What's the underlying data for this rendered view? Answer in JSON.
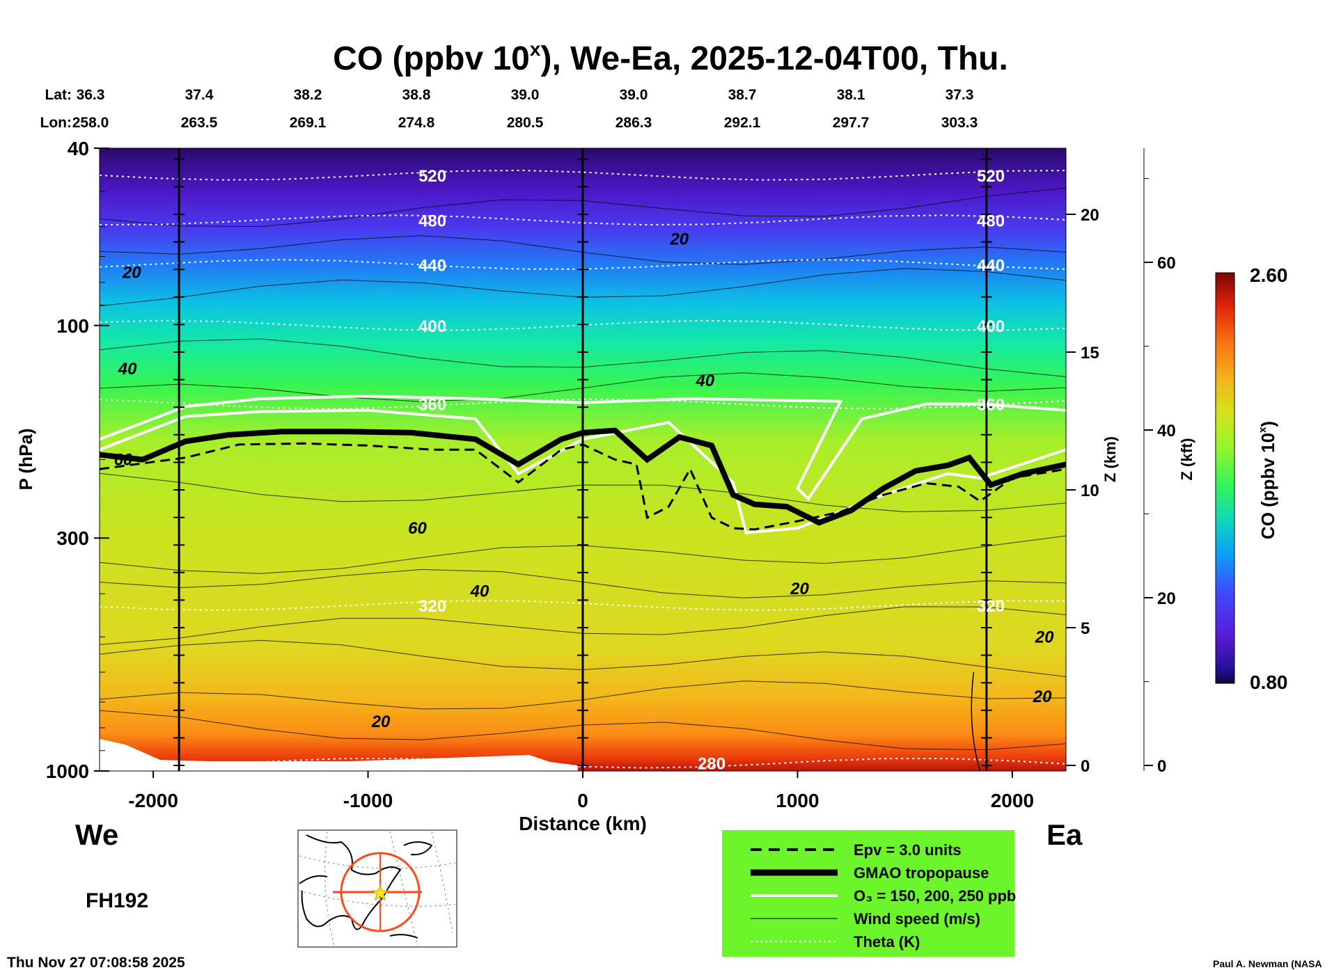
{
  "title_main": "CO (ppbv 10",
  "title_sup": "x",
  "title_rest": "), We-Ea, 2025-12-04T00, Thu.",
  "lat_label": "Lat:",
  "lon_label": "Lon:",
  "lats": [
    "36.3",
    "37.4",
    "38.2",
    "38.8",
    "39.0",
    "39.0",
    "38.7",
    "38.1",
    "37.3"
  ],
  "lons": [
    "258.0",
    "263.5",
    "269.1",
    "274.8",
    "280.5",
    "286.3",
    "292.1",
    "297.7",
    "303.3"
  ],
  "left_dir": "We",
  "right_dir": "Ea",
  "forecast_hour": "FH192",
  "run_timestamp": "Thu Nov 27 07:08:58 2025",
  "credit": "Paul A. Newman (NASA",
  "colors": {
    "theta": "#ffffff",
    "ozone": "#ffffff",
    "tropopause": "#000000",
    "legend_bg": "#6cf52b"
  },
  "legend": [
    {
      "label": "Epv = 3.0 units",
      "style": "dashed-black"
    },
    {
      "label": "GMAO tropopause",
      "style": "thick-black"
    },
    {
      "label": "O₃ = 150, 200, 250 ppb",
      "style": "white"
    },
    {
      "label": "Wind speed (m/s)",
      "style": "thin-black"
    },
    {
      "label": "Theta (K)",
      "style": "dotted-white"
    }
  ],
  "chart_data": {
    "type": "heatmap",
    "xlabel": "Distance (km)",
    "ylabel": "P (hPa)",
    "ylabel_right1": "Z (km)",
    "ylabel_right2": "Z (kft)",
    "colorbar_label": "CO (ppbv 10",
    "colorbar_label_sup": "x",
    "colorbar_label_close": ")",
    "colorbar_min": "0.80",
    "colorbar_max": "2.60",
    "xlim": [
      -2250,
      2250
    ],
    "ylim": [
      1000,
      40
    ],
    "y_scale": "log",
    "x_ticks": [
      -2000,
      -1000,
      0,
      1000,
      2000
    ],
    "x_tick_labels": [
      "-2000",
      "-1000",
      "0",
      "1000",
      "2000"
    ],
    "y_ticks": [
      40,
      100,
      300,
      1000
    ],
    "y_tick_labels": [
      "40",
      "100",
      "300",
      "1000"
    ],
    "z_km_ticks": [
      0,
      5,
      10,
      15,
      20
    ],
    "z_km_tick_labels": [
      "0",
      "5",
      "10",
      "15",
      "20"
    ],
    "z_kft_ticks": [
      0,
      20,
      40,
      60
    ],
    "z_kft_tick_labels": [
      "0",
      "20",
      "40",
      "60"
    ],
    "column_markers_km": [
      -1880,
      0,
      1880
    ],
    "theta_contours": [
      {
        "label": "520",
        "p": 46
      },
      {
        "label": "480",
        "p": 58
      },
      {
        "label": "440",
        "p": 73
      },
      {
        "label": "400",
        "p": 100
      },
      {
        "label": "360",
        "p": 150
      },
      {
        "label": "320",
        "p": 425
      },
      {
        "label": "280",
        "p": 960
      }
    ],
    "wind_labels": [
      {
        "label": "20",
        "x": -2100,
        "p": 76
      },
      {
        "label": "20",
        "x": 450,
        "p": 64
      },
      {
        "label": "40",
        "x": -2120,
        "p": 125
      },
      {
        "label": "40",
        "x": 570,
        "p": 133
      },
      {
        "label": "60",
        "x": -2140,
        "p": 200
      },
      {
        "label": "60",
        "x": -770,
        "p": 285
      },
      {
        "label": "40",
        "x": -480,
        "p": 395
      },
      {
        "label": "20",
        "x": 1010,
        "p": 390
      },
      {
        "label": "20",
        "x": 2150,
        "p": 500
      },
      {
        "label": "20",
        "x": -940,
        "p": 775
      },
      {
        "label": "20",
        "x": 2140,
        "p": 680
      }
    ],
    "tropopause": {
      "x": [
        -2250,
        -2050,
        -1850,
        -1650,
        -1400,
        -1100,
        -800,
        -500,
        -300,
        -100,
        0,
        150,
        300,
        450,
        600,
        700,
        800,
        950,
        1100,
        1250,
        1400,
        1550,
        1700,
        1800,
        1900,
        2050,
        2250
      ],
      "p": [
        195,
        200,
        182,
        176,
        173,
        173,
        174,
        180,
        205,
        180,
        174,
        172,
        200,
        178,
        186,
        240,
        252,
        255,
        277,
        260,
        232,
        212,
        206,
        198,
        228,
        215,
        205
      ]
    },
    "epv": {
      "x": [
        -2250,
        -1850,
        -1600,
        -1300,
        -1000,
        -700,
        -500,
        -300,
        -100,
        0,
        150,
        250,
        300,
        400,
        500,
        600,
        700,
        800,
        1000,
        1200,
        1400,
        1600,
        1750,
        1850,
        2000,
        2250
      ],
      "p": [
        210,
        198,
        185,
        184,
        186,
        190,
        190,
        225,
        190,
        185,
        200,
        205,
        270,
        255,
        210,
        270,
        285,
        287,
        275,
        262,
        240,
        226,
        230,
        248,
        220,
        210
      ]
    },
    "ozone": [
      {
        "x": [
          -2250,
          -1850,
          -1500,
          -1000,
          -500,
          -200,
          0,
          500,
          1200,
          1000,
          1050,
          1300,
          1600,
          1850,
          2250
        ],
        "p": [
          180,
          152,
          146,
          144,
          146,
          148,
          149,
          146,
          148,
          232,
          245,
          162,
          150,
          150,
          155
        ]
      },
      {
        "x": [
          -2250,
          -1850,
          -1500,
          -1000,
          -500,
          -300,
          0,
          400,
          700,
          760,
          1000,
          1400,
          1700,
          1850,
          2250
        ],
        "p": [
          190,
          160,
          156,
          155,
          162,
          215,
          180,
          165,
          225,
          292,
          285,
          240,
          215,
          220,
          190
        ]
      }
    ]
  }
}
